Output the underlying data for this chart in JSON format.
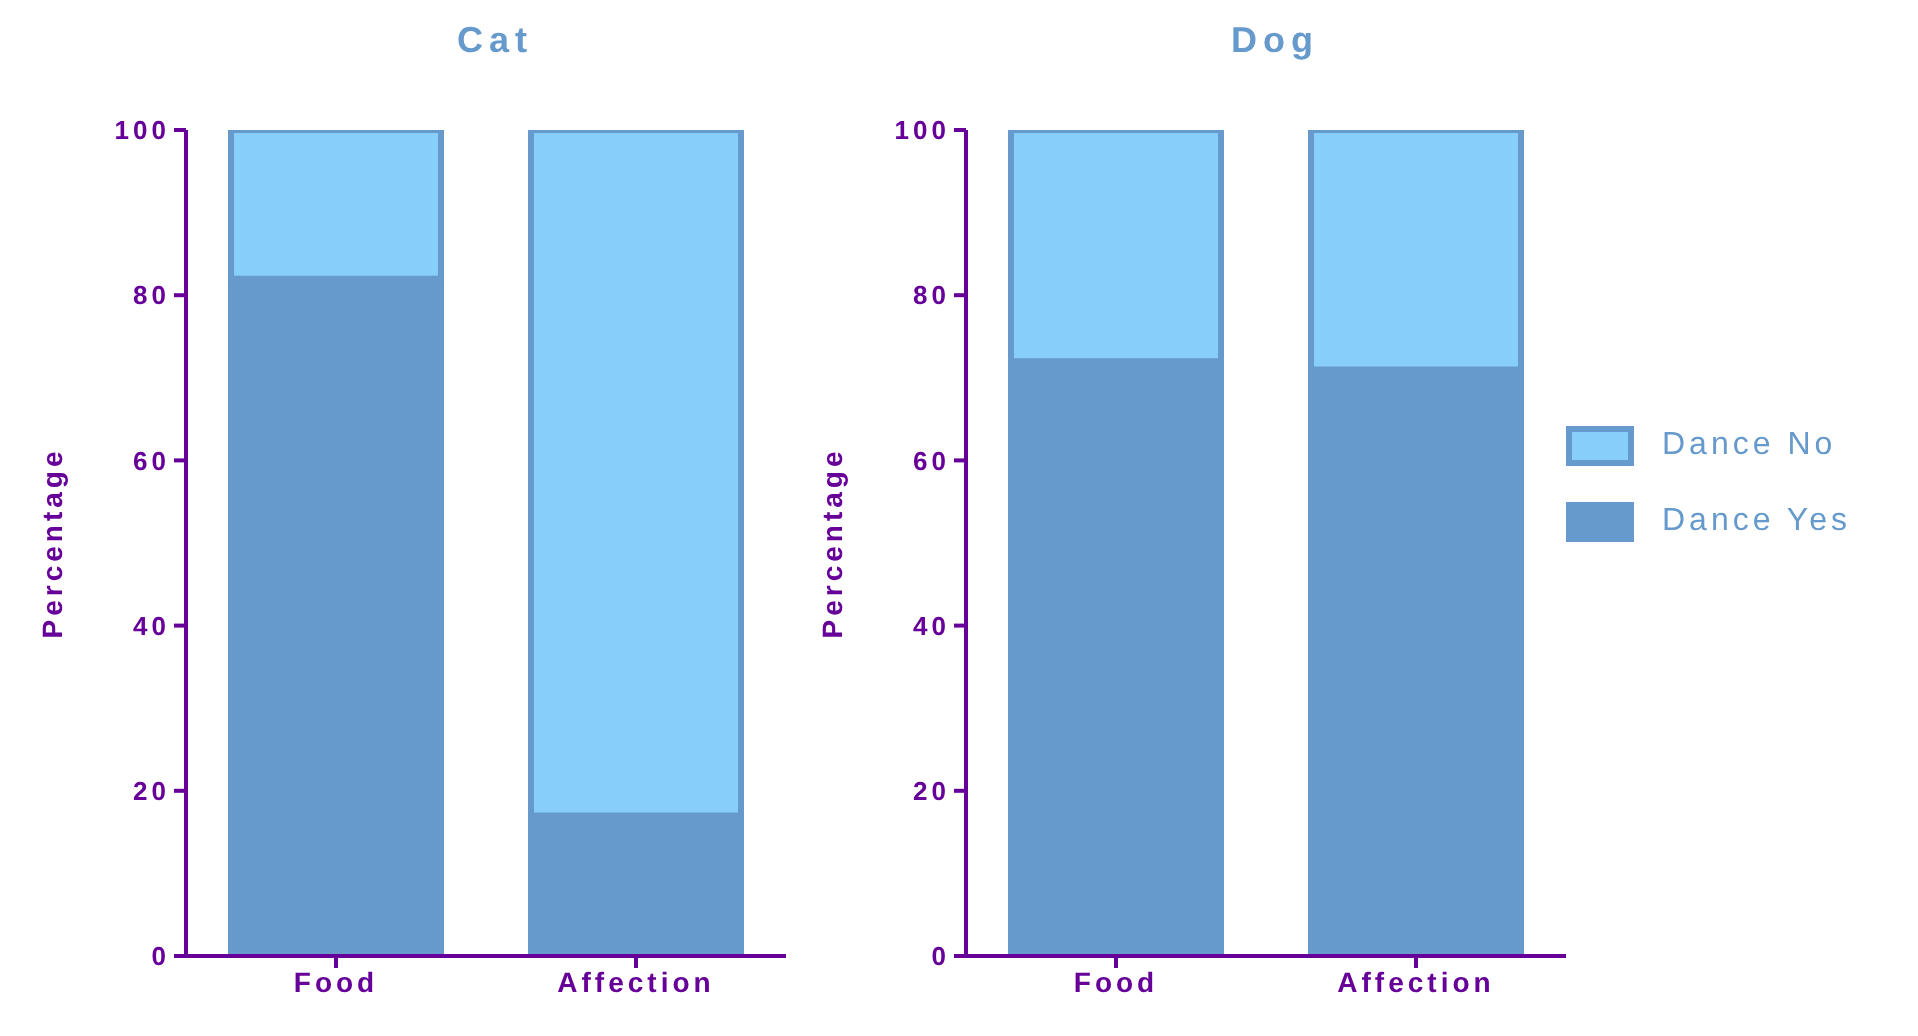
{
  "chart_data": [
    {
      "type": "bar",
      "title": "Cat",
      "ylabel": "Percentage",
      "categories": [
        "Food",
        "Affection"
      ],
      "stacked": true,
      "ylim": [
        0,
        100
      ],
      "yticks": [
        0,
        20,
        40,
        60,
        80,
        100
      ],
      "grid": false,
      "legend": false,
      "series": [
        {
          "color": "#6699cc",
          "values": [
            82,
            17
          ]
        },
        {
          "color": "#87cefa",
          "values": [
            18,
            83
          ]
        }
      ]
    },
    {
      "type": "bar",
      "title": "Dog",
      "ylabel": "Percentage",
      "categories": [
        "Food",
        "Affection"
      ],
      "stacked": true,
      "ylim": [
        0,
        100
      ],
      "yticks": [
        0,
        20,
        40,
        60,
        80,
        100
      ],
      "grid": false,
      "legend": "right",
      "series": [
        {
          "name": "Dance Yes",
          "color": "#6699cc",
          "values": [
            72,
            71
          ]
        },
        {
          "name": "Dance No",
          "color": "#87cefa",
          "values": [
            28,
            29
          ]
        }
      ]
    }
  ]
}
